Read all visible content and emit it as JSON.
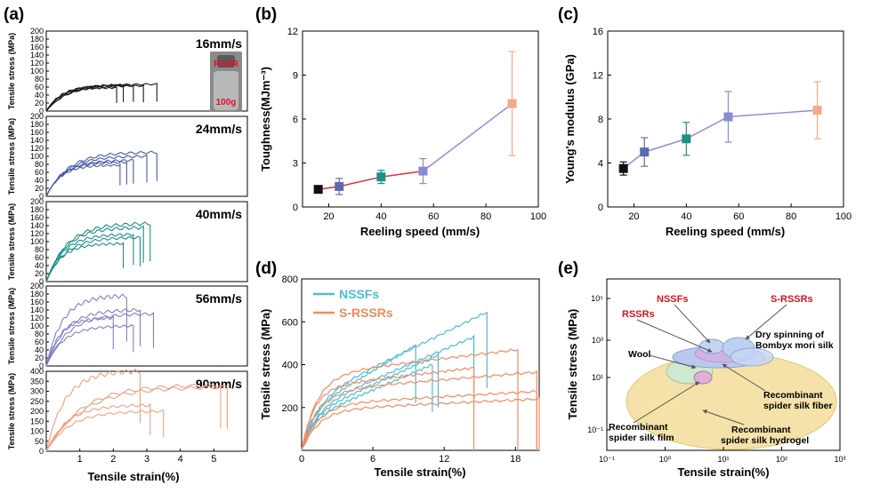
{
  "panels": {
    "a": {
      "label": "(a)",
      "xlabel": "Tensile strain(%)",
      "ylabel": "Tensile stress (MPa)",
      "x_ticks": [
        "1",
        "2",
        "3",
        "4",
        "5"
      ],
      "inset": {
        "top": "RSSR",
        "bottom": "100g"
      },
      "subplots": [
        {
          "speed": "16mm/s",
          "ymax": 200,
          "yticks": [
            "0",
            "20",
            "40",
            "60",
            "80",
            "100",
            "120",
            "140",
            "160",
            "180",
            "200"
          ],
          "color": "#1a1a1a",
          "curves": [
            [
              2.3,
              64
            ],
            [
              2.6,
              66
            ],
            [
              2.9,
              63
            ],
            [
              3.3,
              67
            ],
            [
              2.1,
              58
            ]
          ]
        },
        {
          "speed": "24mm/s",
          "ymax": 200,
          "yticks": [
            "0",
            "20",
            "40",
            "60",
            "80",
            "100",
            "120",
            "140",
            "160",
            "180",
            "200"
          ],
          "color": "#4a5aa8",
          "curves": [
            [
              3.3,
              110
            ],
            [
              2.4,
              85
            ],
            [
              2.2,
              78
            ],
            [
              3.0,
              100
            ],
            [
              2.6,
              90
            ]
          ]
        },
        {
          "speed": "40mm/s",
          "ymax": 200,
          "yticks": [
            "0",
            "20",
            "40",
            "60",
            "80",
            "100",
            "120",
            "140",
            "160",
            "180",
            "200"
          ],
          "color": "#1a8f87",
          "curves": [
            [
              3.1,
              145
            ],
            [
              2.6,
              118
            ],
            [
              2.3,
              95
            ],
            [
              2.9,
              135
            ],
            [
              2.8,
              110
            ]
          ]
        },
        {
          "speed": "56mm/s",
          "ymax": 200,
          "yticks": [
            "0",
            "20",
            "40",
            "60",
            "80",
            "100",
            "120",
            "140",
            "160",
            "180",
            "200"
          ],
          "color": "#8080c8",
          "curves": [
            [
              2.4,
              175
            ],
            [
              2.8,
              140
            ],
            [
              3.2,
              130
            ],
            [
              2.0,
              120
            ],
            [
              2.6,
              100
            ]
          ]
        },
        {
          "speed": "90mm/s",
          "ymax": 400,
          "yticks": [
            "0",
            "50",
            "100",
            "150",
            "200",
            "250",
            "300",
            "350",
            "400"
          ],
          "color": "#f0a080",
          "curves": [
            [
              2.8,
              400
            ],
            [
              5.2,
              330
            ],
            [
              3.1,
              230
            ],
            [
              3.5,
              200
            ],
            [
              5.4,
              320
            ]
          ]
        }
      ]
    },
    "b": {
      "label": "(b)",
      "xlabel": "Reeling speed (mm/s)",
      "ylabel": "Toughness(MJm⁻³)",
      "x_ticks": [
        "20",
        "40",
        "60",
        "80",
        "100"
      ],
      "y_ticks": [
        "0",
        "3",
        "6",
        "9",
        "12"
      ]
    },
    "c": {
      "label": "(c)",
      "xlabel": "Reeling speed (mm/s)",
      "ylabel": "Young's modulus (GPa)",
      "x_ticks": [
        "20",
        "40",
        "60",
        "80",
        "100"
      ],
      "y_ticks": [
        "0",
        "4",
        "8",
        "12",
        "16"
      ]
    },
    "d": {
      "label": "(d)",
      "xlabel": "Tensile strain(%)",
      "ylabel": "Tensile stress (MPa)",
      "x_ticks": [
        "0",
        "6",
        "12",
        "18"
      ],
      "y_ticks": [
        "200",
        "400",
        "600",
        "800"
      ],
      "legend": [
        "NSSFs",
        "S-RSSRs"
      ]
    },
    "e": {
      "label": "(e)",
      "xlabel": "Tensile strain(%)",
      "ylabel": "Tensile stress (MPa)",
      "x_ticks": [
        "10⁻¹",
        "10⁰",
        "10¹",
        "10²",
        "10³"
      ],
      "y_ticks": [
        "10⁻¹",
        "10¹",
        "10³",
        "10⁵"
      ],
      "labels": {
        "nssf": "NSSFs",
        "srssr": "S-RSSRs",
        "rssr": "RSSRs",
        "wool": "Wool",
        "dry1": "Dry spinning of",
        "dry2": "Bombyx mori silk",
        "fiber1": "Recombinant",
        "fiber2": "spider silk fiber",
        "film1": "Recombinant",
        "film2": "spider silk film",
        "hydro1": "Recombinant",
        "hydro2": "spider silk hydrogel"
      }
    }
  },
  "chart_data": [
    {
      "type": "line",
      "panel": "b",
      "xlabel": "Reeling speed (mm/s)",
      "ylabel": "Toughness(MJm⁻³)",
      "xlim": [
        10,
        100
      ],
      "ylim": [
        0,
        12
      ],
      "x": [
        16,
        24,
        40,
        56,
        90
      ],
      "values": [
        1.2,
        1.4,
        2.05,
        2.45,
        7.05
      ],
      "errors": [
        0.2,
        0.55,
        0.45,
        0.85,
        3.55
      ],
      "colors": [
        "#111111",
        "#5a6ab0",
        "#1f8f87",
        "#8a8ad0",
        "#f5a888"
      ]
    },
    {
      "type": "line",
      "panel": "c",
      "xlabel": "Reeling speed (mm/s)",
      "ylabel": "Young's modulus (GPa)",
      "xlim": [
        10,
        100
      ],
      "ylim": [
        0,
        16
      ],
      "x": [
        16,
        24,
        40,
        56,
        90
      ],
      "values": [
        3.5,
        5.0,
        6.2,
        8.2,
        8.8
      ],
      "errors": [
        0.6,
        1.3,
        1.5,
        2.3,
        2.6
      ],
      "colors": [
        "#111111",
        "#5a6ab0",
        "#1f8f87",
        "#8a8ad0",
        "#f5a888"
      ]
    },
    {
      "type": "line",
      "panel": "d",
      "xlabel": "Tensile strain(%)",
      "ylabel": "Tensile stress (MPa)",
      "xlim": [
        0,
        20
      ],
      "ylim": [
        0,
        800
      ],
      "series": [
        {
          "name": "NSSFs",
          "color": "#4bbcd8",
          "curves": [
            [
              15.6,
              645
            ],
            [
              14.5,
              530
            ],
            [
              11.5,
              445
            ],
            [
              9.6,
              490
            ],
            [
              11.0,
              400
            ]
          ]
        },
        {
          "name": "S-RSSRs",
          "color": "#f08a60",
          "curves": [
            [
              18.2,
              470
            ],
            [
              19.8,
              365
            ],
            [
              20.0,
              240
            ],
            [
              14.5,
              385
            ],
            [
              19.8,
              275
            ]
          ]
        }
      ]
    }
  ]
}
